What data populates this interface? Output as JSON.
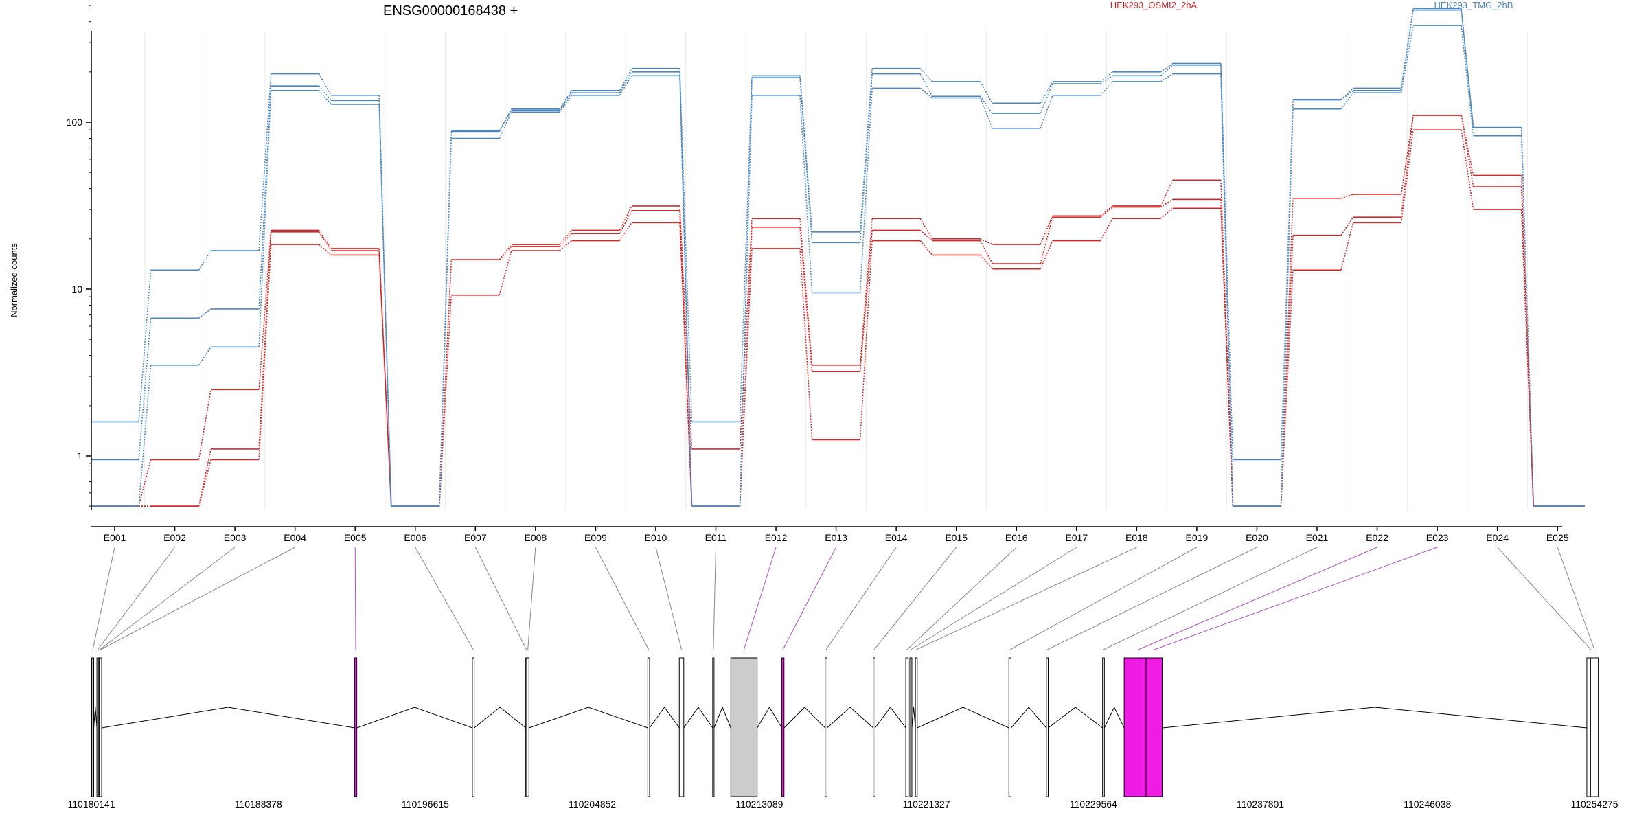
{
  "chart_data": {
    "type": "line",
    "title": "ENSG00000168438 +",
    "ylabel": "Normalized counts",
    "y_scale": "log",
    "ylim": [
      0.5,
      700
    ],
    "y_ticks": [
      1,
      10,
      100
    ],
    "y_tick_labels": [
      "1",
      "10",
      "100"
    ],
    "vertical_grid": true,
    "legend_position": "top-right",
    "legend": [
      {
        "name": "HEK293_OSMI2_2hA",
        "color": "#d62728"
      },
      {
        "name": "HEK293_TMG_2hB",
        "color": "#4a86c0"
      }
    ],
    "exons": [
      "E001",
      "E002",
      "E003",
      "E004",
      "E005",
      "E006",
      "E007",
      "E008",
      "E009",
      "E010",
      "E011",
      "E012",
      "E013",
      "E014",
      "E015",
      "E016",
      "E017",
      "E018",
      "E019",
      "E020",
      "E021",
      "E022",
      "E023",
      "E024",
      "E025"
    ],
    "series": [
      {
        "group": "HEK293_TMG_2hB",
        "color": "#4a86c0",
        "values": [
          1.6,
          13,
          17,
          195,
          145,
          0.5,
          88,
          120,
          155,
          210,
          1.6,
          190,
          22,
          210,
          175,
          130,
          175,
          200,
          225,
          0.95,
          137,
          160,
          480,
          93,
          0.5
        ]
      },
      {
        "group": "HEK293_TMG_2hB",
        "color": "#4a86c0",
        "values": [
          0.95,
          6.7,
          7.6,
          165,
          135,
          0.5,
          89,
          118,
          150,
          200,
          0.5,
          185,
          19,
          195,
          143,
          113,
          170,
          190,
          220,
          0.5,
          136,
          155,
          470,
          93,
          0.5
        ]
      },
      {
        "group": "HEK293_TMG_2hB",
        "color": "#4a86c0",
        "values": [
          0.5,
          3.5,
          4.5,
          155,
          128,
          0.5,
          80,
          115,
          145,
          190,
          0.5,
          145,
          9.5,
          160,
          140,
          92,
          145,
          175,
          195,
          0.5,
          120,
          150,
          380,
          83,
          0.5
        ]
      },
      {
        "group": "HEK293_OSMI2_2hA",
        "color": "#d62728",
        "values": [
          0.5,
          0.95,
          2.5,
          22.5,
          17.5,
          0.5,
          15,
          18.5,
          22.5,
          31.5,
          1.1,
          26.5,
          3.5,
          26.5,
          20,
          18.5,
          27.5,
          31.5,
          45,
          0.5,
          35,
          37,
          110,
          48,
          0.5
        ]
      },
      {
        "group": "HEK293_OSMI2_2hA",
        "color": "#d62728",
        "values": [
          0.5,
          0.5,
          1.1,
          22,
          17,
          0.5,
          15,
          18,
          21.5,
          29.5,
          0.5,
          23.5,
          3.2,
          22.5,
          19.5,
          14.2,
          27,
          31,
          34.5,
          0.5,
          21,
          27,
          110,
          41,
          0.5
        ]
      },
      {
        "group": "HEK293_OSMI2_2hA",
        "color": "#d62728",
        "values": [
          0.5,
          0.5,
          0.95,
          18.5,
          16,
          0.5,
          9.2,
          17,
          19.5,
          25,
          0.5,
          17.5,
          1.25,
          19.5,
          16,
          13.2,
          19.5,
          26.5,
          30.5,
          0.5,
          13,
          25,
          90,
          30,
          0.5
        ]
      }
    ],
    "gene_model": {
      "coordinate_ticks": [
        "110180141",
        "110188378",
        "110196615",
        "110204852",
        "110213089",
        "110221327",
        "110229564",
        "110237801",
        "110246038",
        "110254275"
      ],
      "coordinate_range": [
        110180141,
        110254275
      ],
      "highlight_color": "#ee1ce4",
      "highlighted_exons": [
        "E005",
        "E012",
        "E013",
        "E022",
        "E023"
      ],
      "exon_positions": [
        110180210,
        110180460,
        110180560,
        110180600,
        110193180,
        110198980,
        110201600,
        110201670,
        110207630,
        110209250,
        110210820,
        110212330,
        110214250,
        110216380,
        110218750,
        110220370,
        110220560,
        110220830,
        110225450,
        110227290,
        110230060,
        110231780,
        110232560,
        110254100,
        110254275
      ],
      "exon_widths": [
        100,
        90,
        90,
        100,
        110,
        90,
        60,
        110,
        90,
        220,
        60,
        1300,
        110,
        90,
        90,
        120,
        100,
        90,
        110,
        90,
        90,
        1400,
        800,
        400,
        380
      ]
    }
  }
}
